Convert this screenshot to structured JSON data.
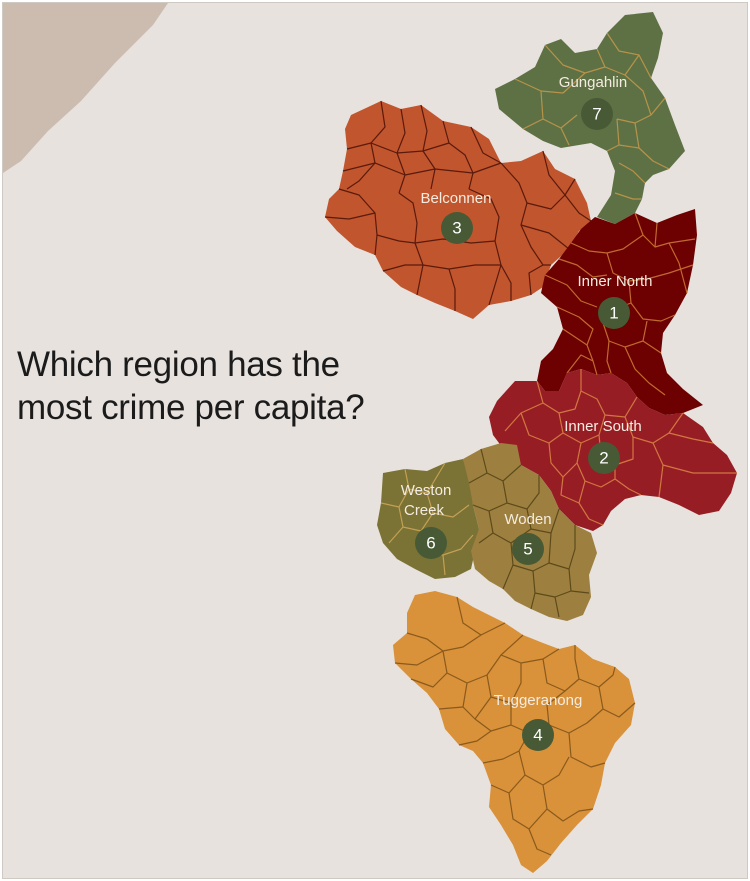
{
  "title": {
    "line1": "Which region has the",
    "line2": "most crime per capita?"
  },
  "colors": {
    "background": "#e7e2de",
    "corner_land": "#cbbcaf",
    "gungahlin": "#5e7145",
    "belconnen": "#c1552d",
    "inner_north": "#6d0000",
    "inner_south": "#971d25",
    "weston_creek": "#7b7235",
    "woden": "#9d8040",
    "tuggeranong": "#d9913a",
    "badge": "#475a35"
  },
  "regions": [
    {
      "id": "gungahlin",
      "name": "Gungahlin",
      "rank": "7"
    },
    {
      "id": "belconnen",
      "name": "Belconnen",
      "rank": "3"
    },
    {
      "id": "inner_north",
      "name": "Inner North",
      "rank": "1"
    },
    {
      "id": "inner_south",
      "name": "Inner South",
      "rank": "2"
    },
    {
      "id": "weston_creek",
      "name_line1": "Weston",
      "name_line2": "Creek",
      "rank": "6"
    },
    {
      "id": "woden",
      "name": "Woden",
      "rank": "5"
    },
    {
      "id": "tuggeranong",
      "name": "Tuggeranong",
      "rank": "4"
    }
  ]
}
